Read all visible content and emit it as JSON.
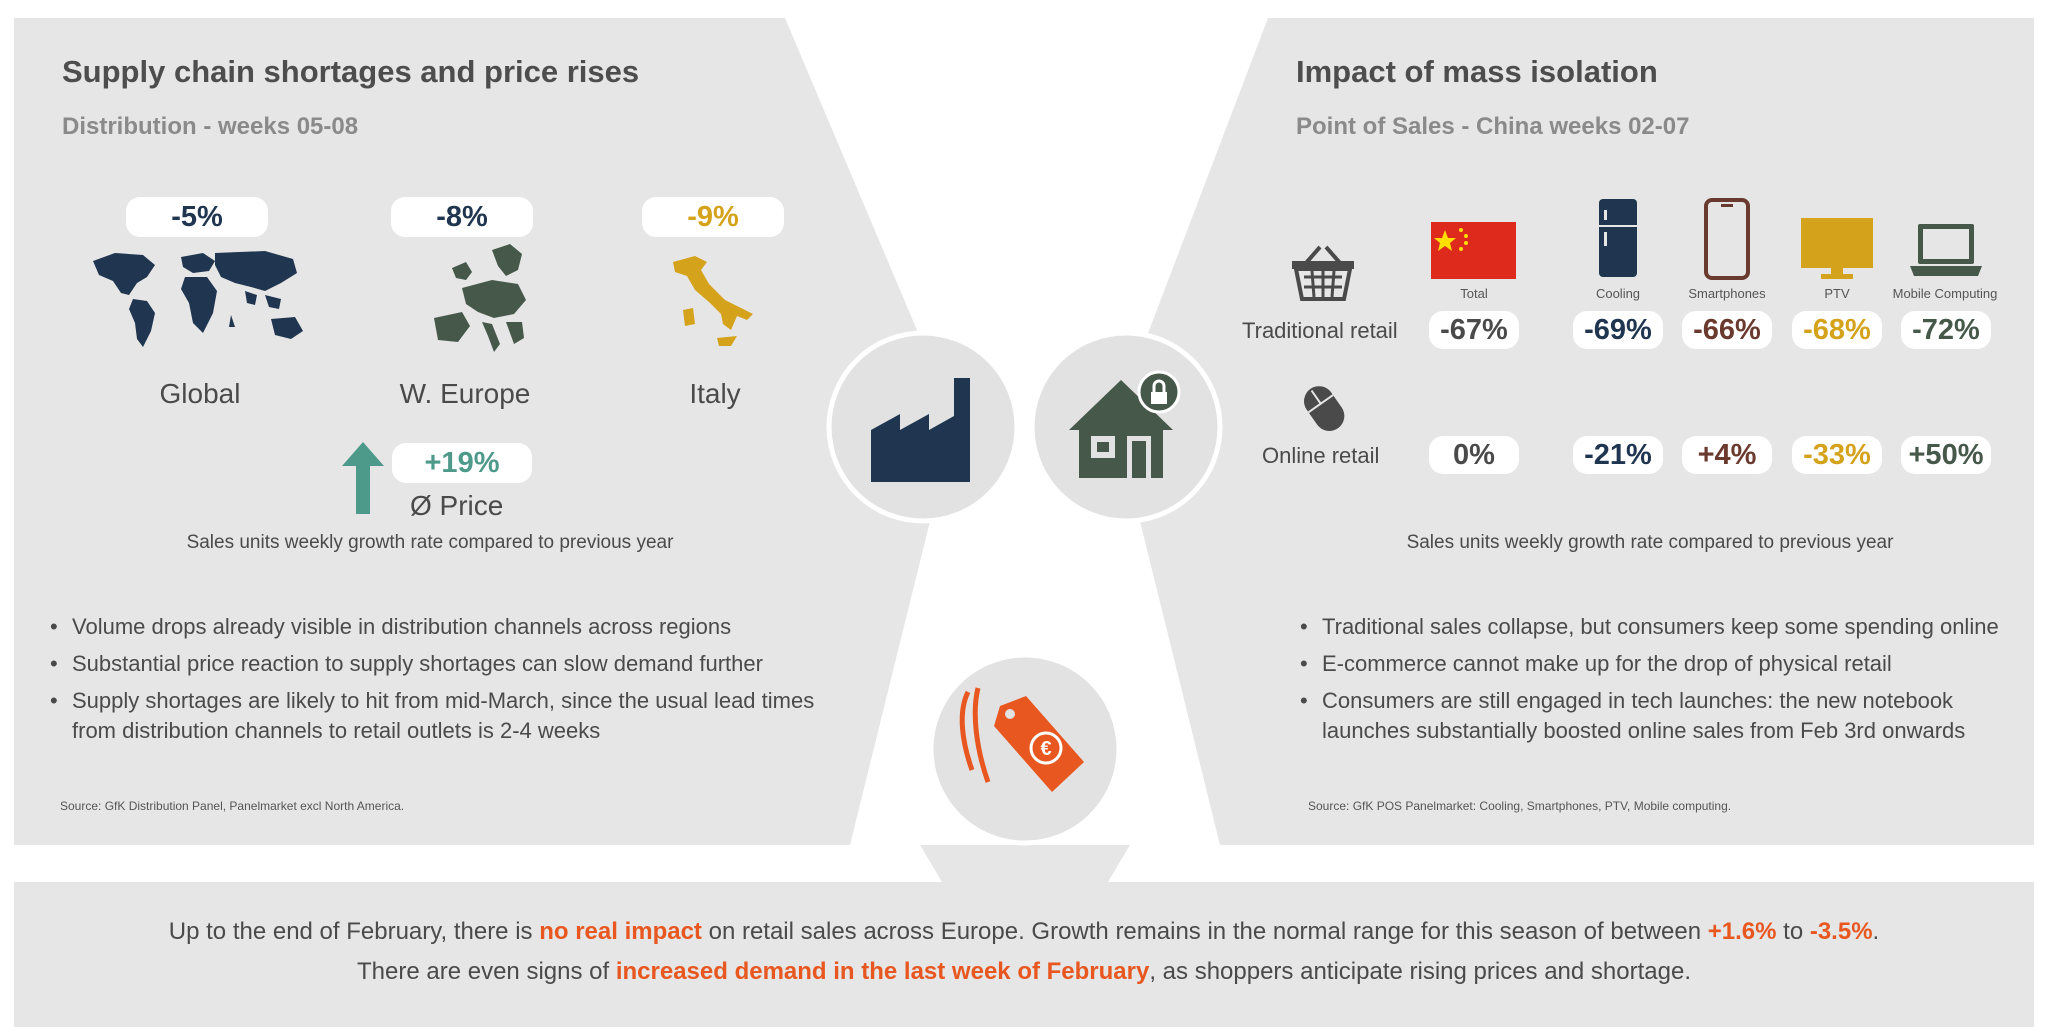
{
  "left": {
    "title": "Supply chain shortages and price rises",
    "subtitle": "Distribution - weeks 05-08",
    "regions": [
      {
        "value": "-5%",
        "label": "Global"
      },
      {
        "value": "-8%",
        "label": "W. Europe"
      },
      {
        "value": "-9%",
        "label": "Italy"
      }
    ],
    "price": {
      "value": "+19%",
      "label": "Ø Price"
    },
    "caption": "Sales units weekly growth rate compared to previous year",
    "bullets": [
      "Volume drops already visible in distribution channels across regions",
      "Substantial price reaction to supply shortages can slow demand further",
      "Supply shortages are likely to hit from mid-March, since the usual lead times from distribution channels to retail outlets is 2-4 weeks"
    ],
    "source": "Source: GfK Distribution Panel, Panelmarket excl North America."
  },
  "right": {
    "title": "Impact of mass isolation",
    "subtitle": "Point of Sales - China weeks 02-07",
    "columns": [
      "Total",
      "Cooling",
      "Smartphones",
      "PTV",
      "Mobile Computing"
    ],
    "rows": [
      {
        "label": "Traditional retail",
        "values": [
          "-67%",
          "-69%",
          "-66%",
          "-68%",
          "-72%"
        ]
      },
      {
        "label": "Online retail",
        "values": [
          "0%",
          "-21%",
          "+4%",
          "-33%",
          "+50%"
        ]
      }
    ],
    "caption": "Sales units weekly growth rate compared to previous year",
    "bullets": [
      "Traditional sales collapse, but consumers keep some spending online",
      "E-commerce cannot make up for the drop of physical retail",
      "Consumers are still engaged in tech launches: the new notebook launches substantially boosted online sales from Feb 3rd onwards"
    ],
    "source": "Source: GfK POS Panelmarket: Cooling, Smartphones, PTV, Mobile computing."
  },
  "footer": {
    "line1_a": "Up to the end of February, there is ",
    "line1_hl": "no real impact",
    "line1_b": " on retail sales across Europe. Growth remains in the normal range for this season of between ",
    "line1_hl2": "+1.6%",
    "line1_c": " to ",
    "line1_hl3": "-3.5%",
    "line1_d": ".",
    "line2_a": "There are even signs of ",
    "line2_hl": "increased demand in the last week of February",
    "line2_b": ", as shoppers anticipate rising prices and shortage."
  },
  "colors": {
    "panel": "#e6e6e6",
    "navy": "#1f3550",
    "green": "#46584a",
    "gold": "#d4a21b",
    "brown": "#6b3a2e",
    "accent": "#e8571f",
    "teal": "#4e9a8a"
  },
  "icons": {
    "factory": "factory-icon",
    "house": "house-lock-icon",
    "tag": "euro-price-tag-icon",
    "basket": "shopping-basket-icon",
    "mouse": "computer-mouse-icon"
  }
}
